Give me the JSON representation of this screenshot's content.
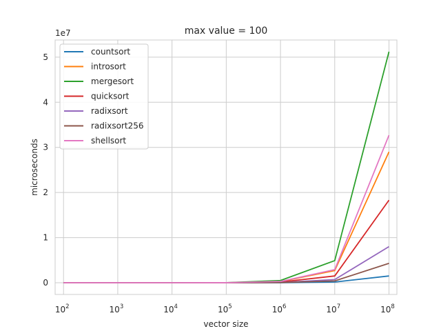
{
  "chart_data": {
    "type": "line",
    "title": "max value = 100",
    "xlabel": "vector size",
    "ylabel": "microseconds",
    "x_scale": "log",
    "x_tick_base": "10",
    "x_tick_exponents": [
      "2",
      "3",
      "4",
      "5",
      "6",
      "7",
      "8"
    ],
    "y_offset_text": "1e7",
    "y_scale_factor": 10000000,
    "y_ticks": [
      "0",
      "1",
      "2",
      "3",
      "4",
      "5"
    ],
    "xlim": [
      70,
      140000000
    ],
    "ylim": [
      -2600000,
      53800000
    ],
    "grid": true,
    "legend_position": "upper-left",
    "x": [
      100,
      1000,
      10000,
      100000,
      1000000,
      10000000,
      100000000
    ],
    "series": [
      {
        "name": "countsort",
        "color": "#1f77b4",
        "values": [
          0,
          0,
          0,
          0,
          10000,
          150000,
          1500000
        ]
      },
      {
        "name": "introsort",
        "color": "#ff7f0e",
        "values": [
          0,
          0,
          0,
          0,
          250000,
          2700000,
          29000000
        ]
      },
      {
        "name": "mergesort",
        "color": "#2ca02c",
        "values": [
          0,
          0,
          0,
          10000,
          500000,
          4900000,
          51200000
        ]
      },
      {
        "name": "quicksort",
        "color": "#d62728",
        "values": [
          0,
          0,
          0,
          0,
          150000,
          1500000,
          18300000
        ]
      },
      {
        "name": "radixsort",
        "color": "#9467bd",
        "values": [
          0,
          0,
          0,
          0,
          60000,
          700000,
          8000000
        ]
      },
      {
        "name": "radixsort256",
        "color": "#8c564b",
        "values": [
          0,
          0,
          0,
          0,
          40000,
          400000,
          4300000
        ]
      },
      {
        "name": "shellsort",
        "color": "#e377c2",
        "values": [
          0,
          0,
          0,
          10000,
          280000,
          2900000,
          32700000
        ]
      }
    ]
  }
}
